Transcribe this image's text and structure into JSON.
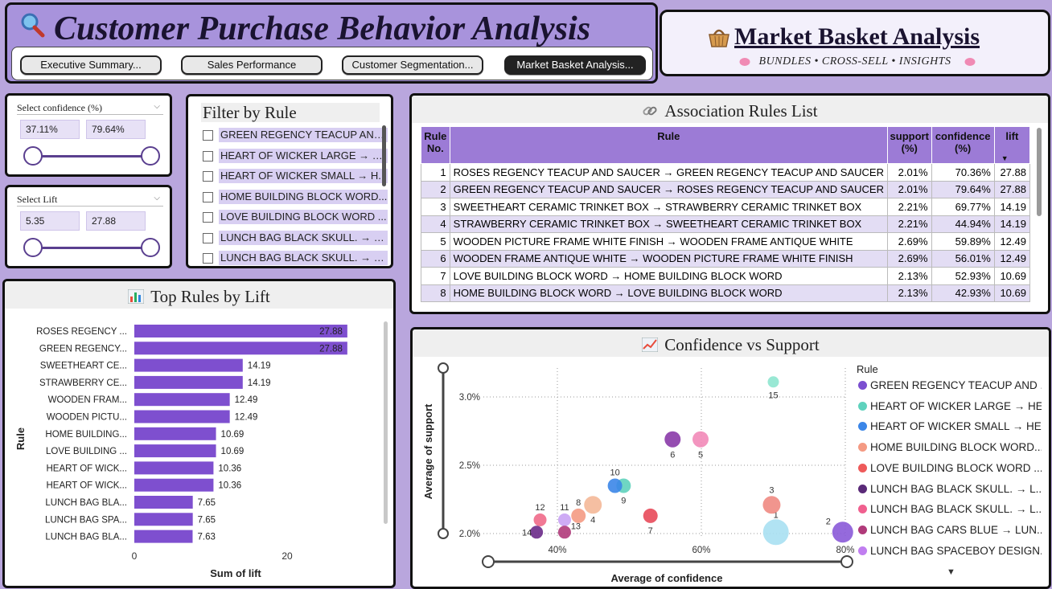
{
  "header": {
    "title": "Customer Purchase Behavior Analysis",
    "tabs": [
      {
        "label": "Executive Summary...",
        "active": false
      },
      {
        "label": "Sales Performance",
        "active": false
      },
      {
        "label": "Customer Segmentation...",
        "active": false
      },
      {
        "label": "Market Basket Analysis...",
        "active": true
      }
    ]
  },
  "market_basket": {
    "title": "Market Basket Analysis",
    "subtitle": "BUNDLES • CROSS-SELL • INSIGHTS"
  },
  "slicers": {
    "confidence": {
      "label": "Select confidence (%)",
      "min": "37.11%",
      "max": "79.64%"
    },
    "lift": {
      "label": "Select Lift",
      "min": "5.35",
      "max": "27.88"
    }
  },
  "filter": {
    "title": "Filter by Rule",
    "items": [
      "GREEN REGENCY TEACUP AND ...",
      "HEART OF WICKER LARGE → HE...",
      "HEART OF WICKER SMALL → H...",
      "HOME BUILDING BLOCK WORD...",
      "LOVE BUILDING BLOCK WORD ...",
      "LUNCH BAG BLACK SKULL. → L...",
      "LUNCH BAG BLACK SKULL. → L..."
    ]
  },
  "top_rules": {
    "title": "Top Rules by Lift",
    "xlabel": "Sum of lift",
    "ylabel": "Rule",
    "x_ticks": [
      "0",
      "20"
    ]
  },
  "assoc": {
    "title": "Association Rules List",
    "columns": [
      "Rule No.",
      "Rule",
      "support (%)",
      "confidence (%)",
      "lift"
    ],
    "rows": [
      [
        "1",
        "ROSES REGENCY TEACUP AND SAUCER → GREEN REGENCY TEACUP AND SAUCER",
        "2.01%",
        "70.36%",
        "27.88"
      ],
      [
        "2",
        "GREEN REGENCY TEACUP AND SAUCER → ROSES REGENCY TEACUP AND SAUCER",
        "2.01%",
        "79.64%",
        "27.88"
      ],
      [
        "3",
        "SWEETHEART CERAMIC TRINKET BOX → STRAWBERRY CERAMIC TRINKET BOX",
        "2.21%",
        "69.77%",
        "14.19"
      ],
      [
        "4",
        "STRAWBERRY CERAMIC TRINKET BOX → SWEETHEART CERAMIC TRINKET BOX",
        "2.21%",
        "44.94%",
        "14.19"
      ],
      [
        "5",
        "WOODEN PICTURE FRAME WHITE FINISH → WOODEN FRAME ANTIQUE WHITE",
        "2.69%",
        "59.89%",
        "12.49"
      ],
      [
        "6",
        "WOODEN FRAME ANTIQUE WHITE → WOODEN PICTURE FRAME WHITE FINISH",
        "2.69%",
        "56.01%",
        "12.49"
      ],
      [
        "7",
        "LOVE BUILDING BLOCK WORD → HOME BUILDING BLOCK WORD",
        "2.13%",
        "52.93%",
        "10.69"
      ],
      [
        "8",
        "HOME BUILDING BLOCK WORD → LOVE BUILDING BLOCK WORD",
        "2.13%",
        "42.93%",
        "10.69"
      ]
    ]
  },
  "scatter": {
    "title": "Confidence vs Support",
    "legend_title": "Rule",
    "legend": [
      {
        "label": "GREEN REGENCY TEACUP AND ...",
        "color": "#7b4fd0"
      },
      {
        "label": "HEART OF WICKER LARGE → HE...",
        "color": "#5fd2bd"
      },
      {
        "label": "HEART OF WICKER SMALL → HE...",
        "color": "#3b86e8"
      },
      {
        "label": "HOME BUILDING BLOCK WORD...",
        "color": "#f49a83"
      },
      {
        "label": "LOVE BUILDING BLOCK WORD ...",
        "color": "#ee5a5a"
      },
      {
        "label": "LUNCH BAG  BLACK SKULL. → L...",
        "color": "#5a2a78"
      },
      {
        "label": "LUNCH BAG  BLACK SKULL. → L...",
        "color": "#f0608f"
      },
      {
        "label": "LUNCH BAG CARS BLUE → LUN...",
        "color": "#b03a7a"
      },
      {
        "label": "LUNCH BAG SPACEBOY DESIGN...",
        "color": "#c07ef0"
      }
    ]
  },
  "chart_data": [
    {
      "type": "bar",
      "orientation": "horizontal",
      "title": "Top Rules by Lift",
      "xlabel": "Sum of lift",
      "ylabel": "Rule",
      "xlim": [
        0,
        30
      ],
      "categories": [
        "ROSES REGENCY ...",
        "GREEN REGENCY...",
        "SWEETHEART CE...",
        "STRAWBERRY CE...",
        "WOODEN FRAM...",
        "WOODEN PICTU...",
        "HOME BUILDING...",
        "LOVE BUILDING ...",
        "HEART OF WICK...",
        "HEART OF WICK...",
        "LUNCH BAG BLA...",
        "LUNCH BAG SPA...",
        "LUNCH BAG BLA..."
      ],
      "values": [
        27.88,
        27.88,
        14.19,
        14.19,
        12.49,
        12.49,
        10.69,
        10.69,
        10.36,
        10.36,
        7.65,
        7.65,
        7.63
      ],
      "data_labels": [
        "27.88",
        "27.88",
        "14.19",
        "14.19",
        "12.49",
        "12.49",
        "10.69",
        "10.69",
        "10.36",
        "10.36",
        "7.65",
        "7.65",
        "7.63"
      ],
      "bar_color": "#7e4fcf"
    },
    {
      "type": "scatter",
      "title": "Confidence vs Support",
      "xlabel": "Average of confidence",
      "ylabel": "Average of support",
      "x_ticks": [
        "40%",
        "60%",
        "80%"
      ],
      "y_ticks": [
        "2.0%",
        "2.5%",
        "3.0%"
      ],
      "xlim": [
        35,
        80
      ],
      "ylim": [
        2.0,
        3.1
      ],
      "points": [
        {
          "label": "1",
          "x": 70.36,
          "y": 2.01,
          "color": "#a8e0f2",
          "r": 16
        },
        {
          "label": "2",
          "x": 79.64,
          "y": 2.01,
          "color": "#8a5ad8",
          "r": 13
        },
        {
          "label": "3",
          "x": 69.77,
          "y": 2.21,
          "color": "#f08a82",
          "r": 11
        },
        {
          "label": "4",
          "x": 44.94,
          "y": 2.21,
          "color": "#f4b898",
          "r": 11
        },
        {
          "label": "5",
          "x": 59.89,
          "y": 2.69,
          "color": "#f28ab8",
          "r": 10
        },
        {
          "label": "6",
          "x": 56.01,
          "y": 2.69,
          "color": "#8a3aa8",
          "r": 10
        },
        {
          "label": "7",
          "x": 52.93,
          "y": 2.13,
          "color": "#e84a5a",
          "r": 9
        },
        {
          "label": "8",
          "x": 42.93,
          "y": 2.13,
          "color": "#f49a83",
          "r": 9
        },
        {
          "label": "9",
          "x": 49.2,
          "y": 2.35,
          "color": "#5fd2bd",
          "r": 9
        },
        {
          "label": "10",
          "x": 48.0,
          "y": 2.35,
          "color": "#3b86e8",
          "r": 9
        },
        {
          "label": "11",
          "x": 41.0,
          "y": 2.1,
          "color": "#c9a2f4",
          "r": 8
        },
        {
          "label": "12",
          "x": 37.6,
          "y": 2.1,
          "color": "#f06a8a",
          "r": 8
        },
        {
          "label": "13",
          "x": 41.0,
          "y": 2.01,
          "color": "#b03a7a",
          "r": 8
        },
        {
          "label": "14",
          "x": 37.11,
          "y": 2.01,
          "color": "#6a2a88",
          "r": 8
        },
        {
          "label": "15",
          "x": 70.0,
          "y": 3.11,
          "color": "#8ee6cf",
          "r": 7
        }
      ]
    }
  ]
}
